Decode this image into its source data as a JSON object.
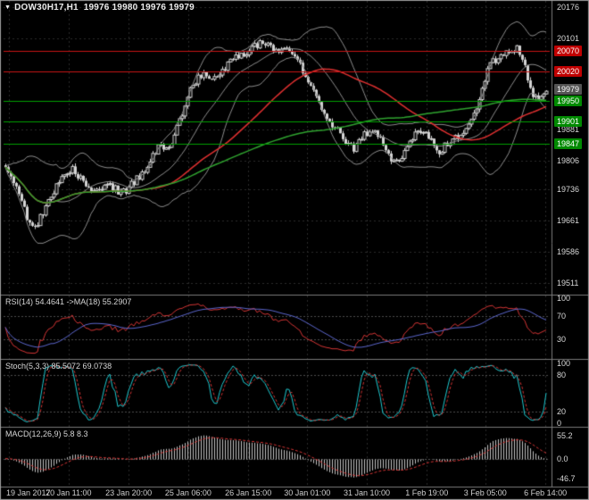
{
  "window": {
    "title": "DOW30H17,H1  19976 19980 19976 19979"
  },
  "colors": {
    "background": "#000000",
    "resistance_line": "#c81414",
    "support_line": "#00a000",
    "resistance_badge": "#c00000",
    "support_badge": "#008a00",
    "current_badge": "#545454",
    "candle": "#d4d4d4",
    "bollinger": "#8c8c8c",
    "ma_fast": "#e03030",
    "ma_slow": "#2fa32f",
    "rsi_line": "#d23434",
    "rsi_ma": "#5b66cc",
    "stoch_k": "#1fc8cf",
    "stoch_d": "#d23434",
    "macd_hist": "#c2c2c2",
    "macd_signal": "#d23434",
    "axis_text": "#d8d8d8",
    "grid": "#2b2b2b",
    "level_grid": "#4d4d4d",
    "separator": "#7a7a7a"
  },
  "chart_data": {
    "type": "candlestick",
    "title": "DOW30H17,H1",
    "symbol": "DOW30H17",
    "timeframe": "H1",
    "ohlc_display": {
      "open": 19976,
      "high": 19980,
      "low": 19976,
      "close": 19979
    },
    "bars": 203,
    "price_axis": {
      "min": 19511,
      "max": 20176,
      "tick_labels": [
        20176,
        20101,
        19881,
        19806,
        19736,
        19661,
        19586,
        19511
      ]
    },
    "time_axis": {
      "ticks": [
        {
          "label": "19 Jan 2017",
          "pos": 0.0098
        },
        {
          "label": "20 Jan 11:00",
          "pos": 0.119
        },
        {
          "label": "23 Jan 20:00",
          "pos": 0.229
        },
        {
          "label": "25 Jan 06:00",
          "pos": 0.338
        },
        {
          "label": "26 Jan 15:00",
          "pos": 0.448
        },
        {
          "label": "30 Jan 01:00",
          "pos": 0.556
        },
        {
          "label": "31 Jan 10:00",
          "pos": 0.665
        },
        {
          "label": "1 Feb 19:00",
          "pos": 0.775
        },
        {
          "label": "3 Feb 05:00",
          "pos": 0.882
        },
        {
          "label": "6 Feb 14:00",
          "pos": 0.992
        }
      ]
    },
    "levels": {
      "resistance": [
        20070,
        20020
      ],
      "support": [
        19950,
        19901,
        19847
      ],
      "current": 19979
    },
    "price_path": [
      [
        0.0,
        19795
      ],
      [
        0.02,
        19745
      ],
      [
        0.04,
        19668
      ],
      [
        0.055,
        19645
      ],
      [
        0.075,
        19698
      ],
      [
        0.1,
        19762
      ],
      [
        0.125,
        19788
      ],
      [
        0.148,
        19742
      ],
      [
        0.17,
        19730
      ],
      [
        0.192,
        19748
      ],
      [
        0.215,
        19726
      ],
      [
        0.24,
        19758
      ],
      [
        0.262,
        19792
      ],
      [
        0.282,
        19838
      ],
      [
        0.3,
        19833
      ],
      [
        0.322,
        19900
      ],
      [
        0.342,
        19982
      ],
      [
        0.362,
        20014
      ],
      [
        0.383,
        20002
      ],
      [
        0.408,
        20034
      ],
      [
        0.432,
        20058
      ],
      [
        0.458,
        20078
      ],
      [
        0.475,
        20094
      ],
      [
        0.5,
        20068
      ],
      [
        0.518,
        20084
      ],
      [
        0.535,
        20058
      ],
      [
        0.555,
        20008
      ],
      [
        0.575,
        19952
      ],
      [
        0.598,
        19906
      ],
      [
        0.622,
        19862
      ],
      [
        0.643,
        19836
      ],
      [
        0.663,
        19870
      ],
      [
        0.683,
        19882
      ],
      [
        0.7,
        19846
      ],
      [
        0.715,
        19797
      ],
      [
        0.73,
        19812
      ],
      [
        0.748,
        19850
      ],
      [
        0.765,
        19880
      ],
      [
        0.78,
        19864
      ],
      [
        0.8,
        19826
      ],
      [
        0.82,
        19850
      ],
      [
        0.84,
        19868
      ],
      [
        0.855,
        19886
      ],
      [
        0.87,
        19928
      ],
      [
        0.883,
        19992
      ],
      [
        0.895,
        20040
      ],
      [
        0.913,
        20054
      ],
      [
        0.93,
        20068
      ],
      [
        0.945,
        20080
      ],
      [
        0.958,
        20046
      ],
      [
        0.972,
        19968
      ],
      [
        0.988,
        19958
      ],
      [
        1.0,
        19979
      ]
    ],
    "indicators": {
      "rsi": {
        "label": "RSI(14) 54.4641 ->MA(18) 55.2907",
        "period": 14,
        "ma_period": 18,
        "value": 54.4641,
        "ma_value": 55.2907,
        "levels": [
          70,
          30
        ],
        "axis_ticks": [
          100,
          70,
          30
        ]
      },
      "stoch": {
        "label": "Stoch(5,3,3) 85.5072 69.0738",
        "k": 85.5072,
        "d": 69.0738,
        "levels": [
          80,
          20
        ],
        "axis_ticks": [
          100,
          80,
          20,
          0
        ]
      },
      "macd": {
        "label": "MACD(12,26,9) 5.8 8.3",
        "value": 5.8,
        "signal": 8.3,
        "axis_ticks": [
          55.2,
          0.0,
          -46.7
        ]
      }
    }
  }
}
